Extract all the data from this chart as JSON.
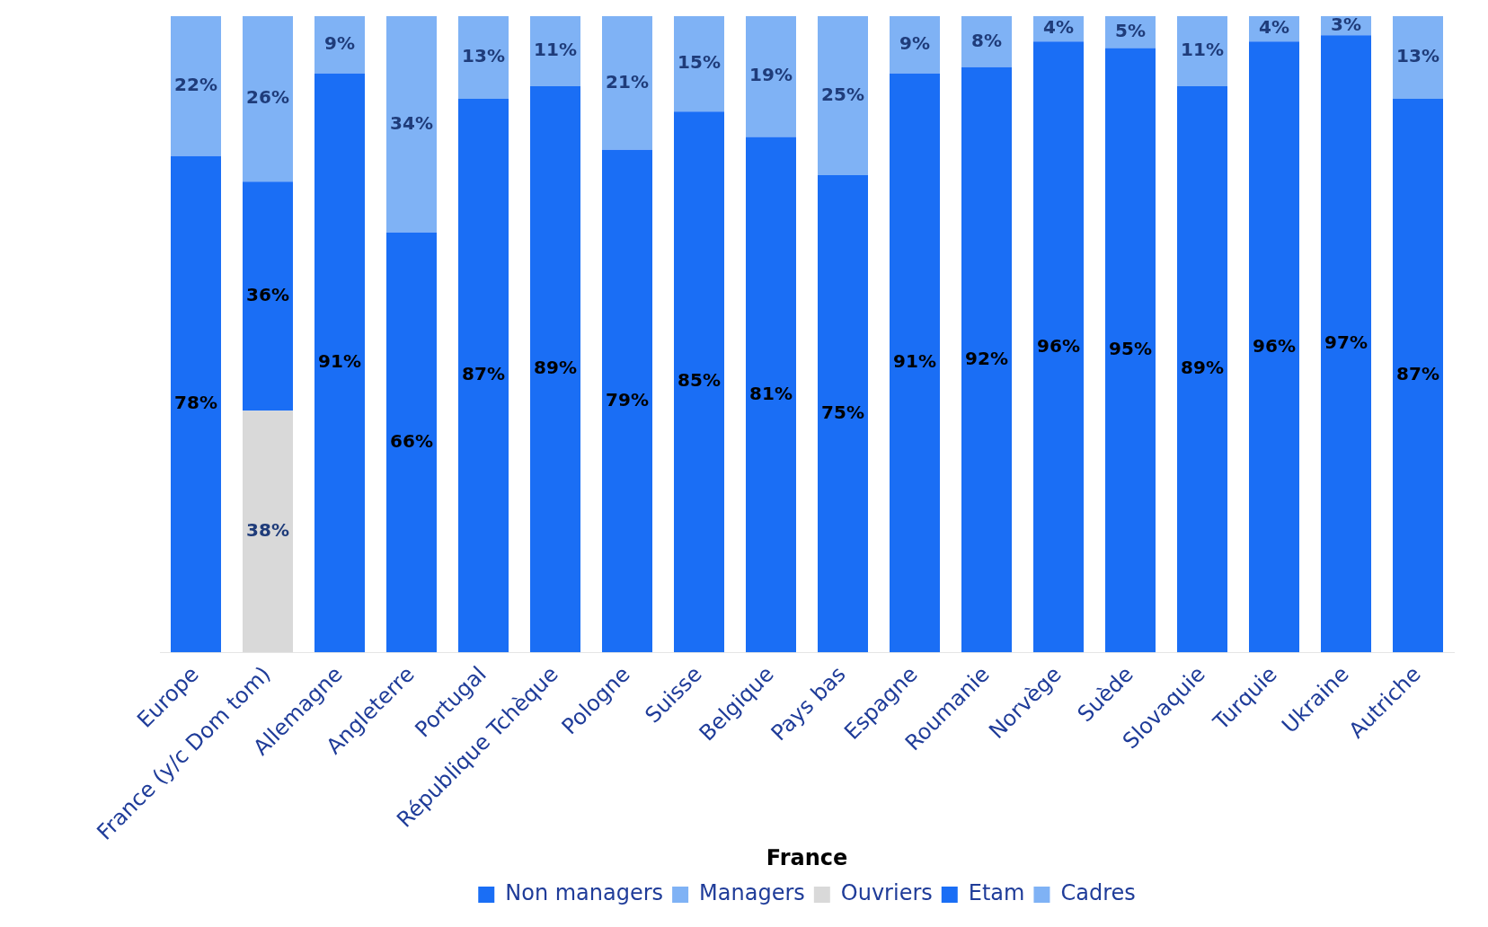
{
  "chart_data": {
    "type": "bar",
    "stacked": true,
    "legend": "bottom",
    "legend_title": "France",
    "grid": false,
    "categories": [
      "Europe",
      "France (y/c Dom tom)",
      "Allemagne",
      "Angleterre",
      "Portugal",
      "République Tchèque",
      "Pologne",
      "Suisse",
      "Belgique",
      "Pays bas",
      "Espagne",
      "Roumanie",
      "Norvège",
      "Suède",
      "Slovaquie",
      "Turquie",
      "Ukraine",
      "Autriche"
    ],
    "series": [
      {
        "name": "Non managers",
        "color": "#1a6ef5",
        "values": [
          78,
          null,
          91,
          66,
          87,
          89,
          79,
          85,
          81,
          75,
          91,
          92,
          96,
          95,
          89,
          96,
          97,
          87
        ],
        "value_labels": [
          "78%",
          null,
          "91%",
          "66%",
          "87%",
          "89%",
          "79%",
          "85%",
          "81%",
          "75%",
          "91%",
          "92%",
          "96%",
          "95%",
          "89%",
          "96%",
          "97%",
          "87%"
        ]
      },
      {
        "name": "Managers",
        "color": "#7fb2f5",
        "values": [
          22,
          null,
          9,
          34,
          13,
          11,
          21,
          15,
          19,
          25,
          9,
          8,
          4,
          5,
          11,
          4,
          3,
          13
        ],
        "value_labels": [
          "22%",
          null,
          "9%",
          "34%",
          "13%",
          "11%",
          "21%",
          "15%",
          "19%",
          "25%",
          "9%",
          "8%",
          "4%",
          "5%",
          "11%",
          "4%",
          "3%",
          "13%"
        ]
      },
      {
        "name": "Ouvriers",
        "color": "#d9d9d9",
        "values": [
          null,
          38,
          null,
          null,
          null,
          null,
          null,
          null,
          null,
          null,
          null,
          null,
          null,
          null,
          null,
          null,
          null,
          null
        ],
        "value_labels": [
          null,
          "38%",
          null,
          null,
          null,
          null,
          null,
          null,
          null,
          null,
          null,
          null,
          null,
          null,
          null,
          null,
          null,
          null
        ]
      },
      {
        "name": "Etam",
        "color": "#1a6ef5",
        "values": [
          null,
          36,
          null,
          null,
          null,
          null,
          null,
          null,
          null,
          null,
          null,
          null,
          null,
          null,
          null,
          null,
          null,
          null
        ],
        "value_labels": [
          null,
          "36%",
          null,
          null,
          null,
          null,
          null,
          null,
          null,
          null,
          null,
          null,
          null,
          null,
          null,
          null,
          null,
          null
        ]
      },
      {
        "name": "Cadres",
        "color": "#7fb2f5",
        "values": [
          null,
          26,
          null,
          null,
          null,
          null,
          null,
          null,
          null,
          null,
          null,
          null,
          null,
          null,
          null,
          null,
          null,
          null
        ],
        "value_labels": [
          null,
          "26%",
          null,
          null,
          null,
          null,
          null,
          null,
          null,
          null,
          null,
          null,
          null,
          null,
          null,
          null,
          null,
          null
        ]
      }
    ]
  }
}
